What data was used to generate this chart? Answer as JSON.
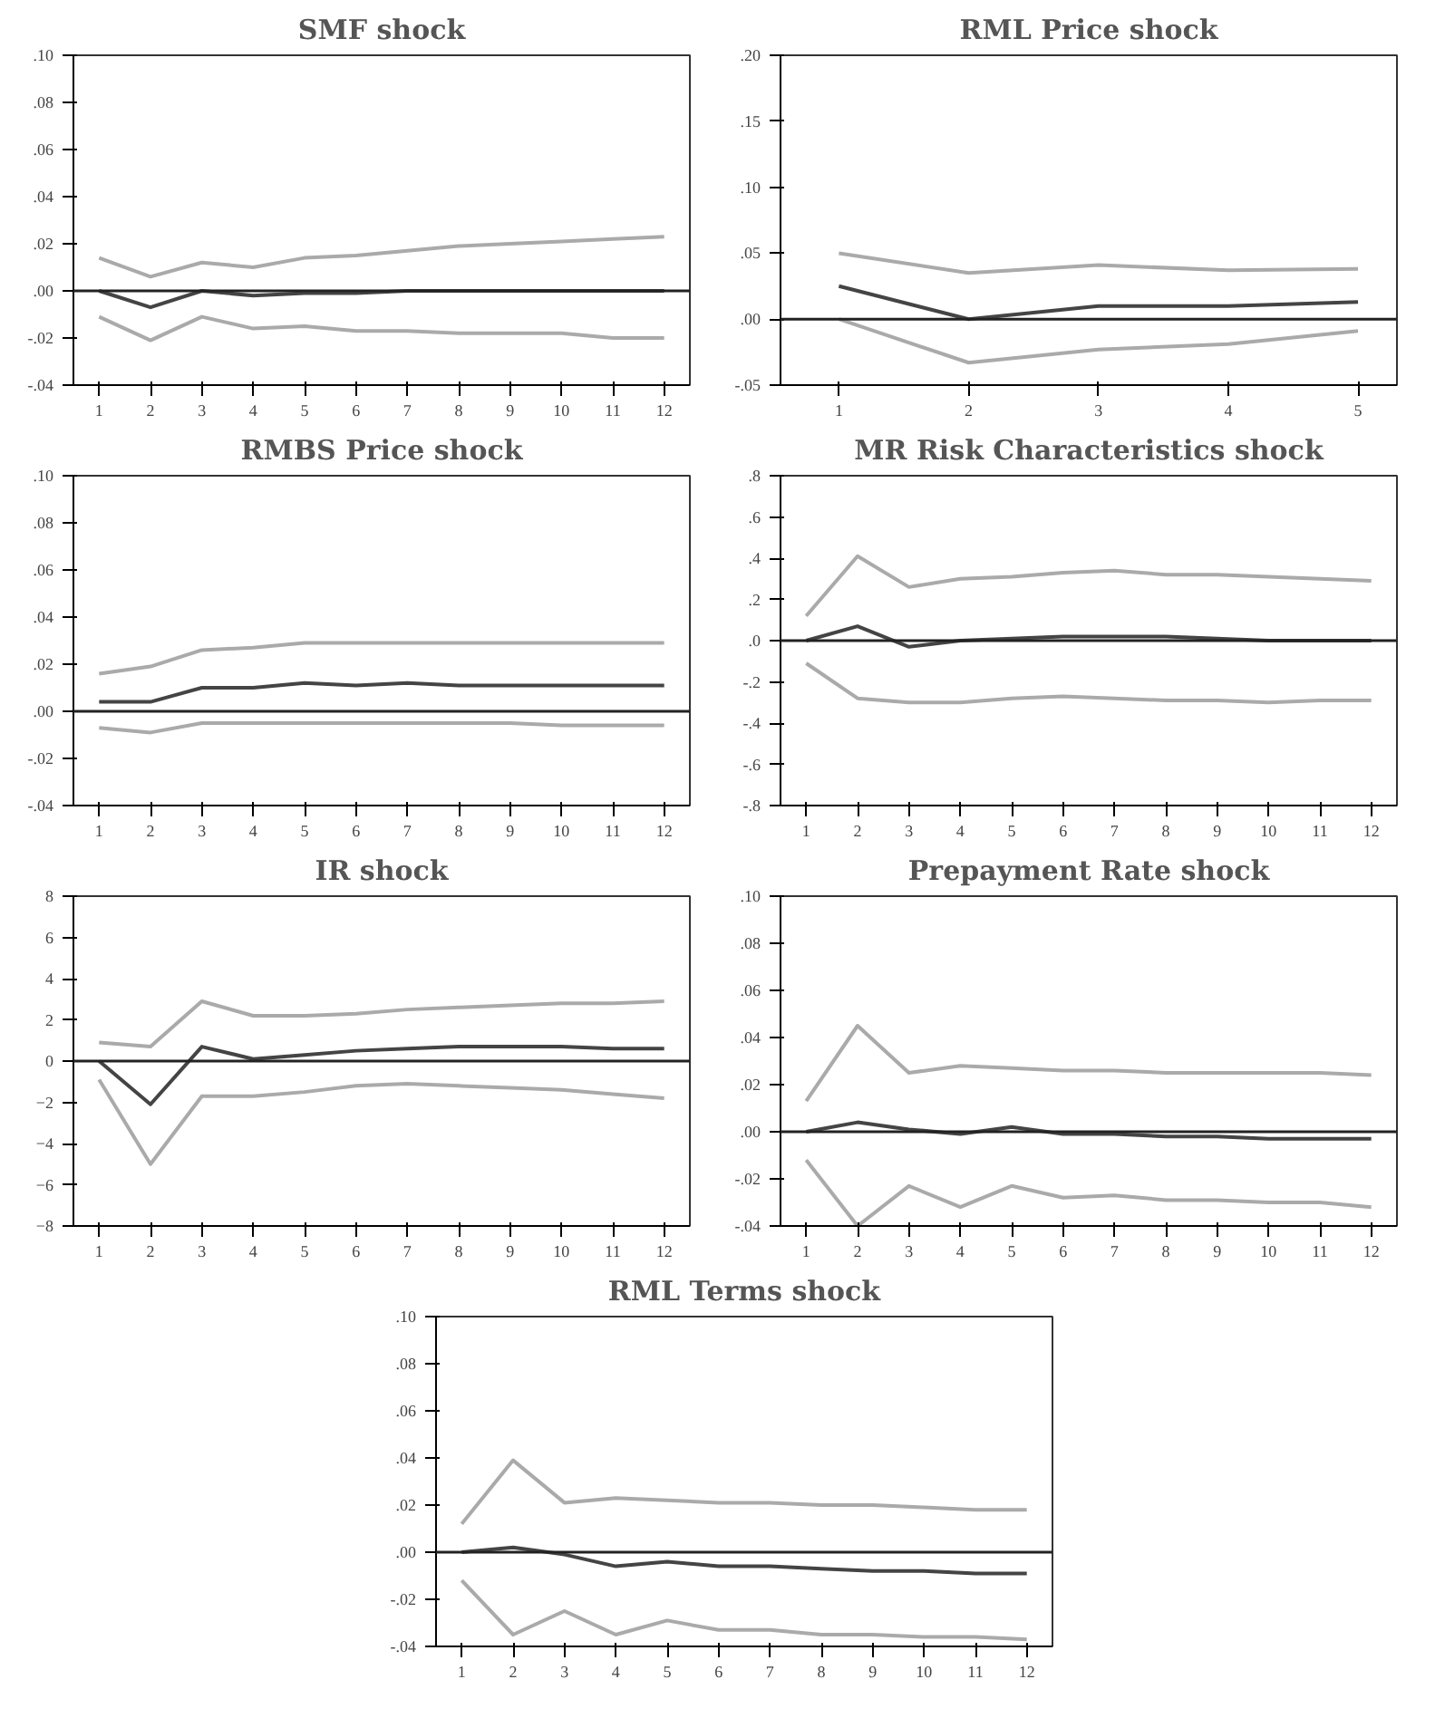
{
  "chart_data": [
    {
      "type": "line",
      "title": "SMF shock",
      "x": [
        1,
        2,
        3,
        4,
        5,
        6,
        7,
        8,
        9,
        10,
        11,
        12
      ],
      "xlim": [
        0.5,
        12.5
      ],
      "xticks": [
        1,
        2,
        3,
        4,
        5,
        6,
        7,
        8,
        9,
        10,
        11,
        12
      ],
      "ylim": [
        -0.04,
        0.1
      ],
      "yticks": [
        {
          "value": -0.04,
          "label": "-.04"
        },
        {
          "value": -0.02,
          "label": "-.02"
        },
        {
          "value": 0,
          "label": ".00"
        },
        {
          "value": 0.02,
          "label": ".02"
        },
        {
          "value": 0.04,
          "label": ".04"
        },
        {
          "value": 0.06,
          "label": ".06"
        },
        {
          "value": 0.08,
          "label": ".08"
        },
        {
          "value": 0.1,
          "label": ".10"
        }
      ],
      "ref_lines": [
        {
          "axis": "y",
          "value": 0,
          "color": "#222222"
        }
      ],
      "series": [
        {
          "color": "#aaaaaa",
          "values": [
            0.014,
            0.006,
            0.012,
            0.01,
            0.014,
            0.015,
            0.017,
            0.019,
            0.02,
            0.021,
            0.022,
            0.023
          ]
        },
        {
          "color": "#444444",
          "values": [
            0.0,
            -0.007,
            0.0,
            -0.002,
            -0.001,
            -0.001,
            0.0,
            0.0,
            0.0,
            0.0,
            0.0,
            0.0
          ]
        },
        {
          "color": "#aaaaaa",
          "values": [
            -0.011,
            -0.021,
            -0.011,
            -0.016,
            -0.015,
            -0.017,
            -0.017,
            -0.018,
            -0.018,
            -0.018,
            -0.02,
            -0.02
          ]
        }
      ]
    },
    {
      "type": "line",
      "title": "RML Price shock",
      "x": [
        1,
        2,
        3,
        4,
        5
      ],
      "xlim": [
        0.55,
        5.3
      ],
      "xticks": [
        1,
        2,
        3,
        4,
        5
      ],
      "ylim": [
        -0.05,
        0.2
      ],
      "yticks": [
        {
          "value": -0.05,
          "label": "-.05"
        },
        {
          "value": 0,
          "label": ".00"
        },
        {
          "value": 0.05,
          "label": ".05"
        },
        {
          "value": 0.1,
          "label": ".10"
        },
        {
          "value": 0.15,
          "label": ".15"
        },
        {
          "value": 0.2,
          "label": ".20"
        }
      ],
      "ref_lines": [
        {
          "axis": "y",
          "value": 0,
          "color": "#222222"
        }
      ],
      "series": [
        {
          "color": "#aaaaaa",
          "values": [
            0.05,
            0.035,
            0.041,
            0.037,
            0.038
          ]
        },
        {
          "color": "#444444",
          "values": [
            0.025,
            0.0,
            0.01,
            0.01,
            0.013
          ]
        },
        {
          "color": "#aaaaaa",
          "values": [
            0.0,
            -0.033,
            -0.023,
            -0.019,
            -0.009
          ]
        }
      ]
    },
    {
      "type": "line",
      "title": "RMBS Price shock",
      "x": [
        1,
        2,
        3,
        4,
        5,
        6,
        7,
        8,
        9,
        10,
        11,
        12
      ],
      "xlim": [
        0.5,
        12.5
      ],
      "xticks": [
        1,
        2,
        3,
        4,
        5,
        6,
        7,
        8,
        9,
        10,
        11,
        12
      ],
      "ylim": [
        -0.04,
        0.1
      ],
      "yticks": [
        {
          "value": -0.04,
          "label": "-.04"
        },
        {
          "value": -0.02,
          "label": "-.02"
        },
        {
          "value": 0,
          "label": ".00"
        },
        {
          "value": 0.02,
          "label": ".02"
        },
        {
          "value": 0.04,
          "label": ".04"
        },
        {
          "value": 0.06,
          "label": ".06"
        },
        {
          "value": 0.08,
          "label": ".08"
        },
        {
          "value": 0.1,
          "label": ".10"
        }
      ],
      "ref_lines": [
        {
          "axis": "y",
          "value": 0,
          "color": "#222222"
        }
      ],
      "series": [
        {
          "color": "#aaaaaa",
          "values": [
            0.016,
            0.019,
            0.026,
            0.027,
            0.029,
            0.029,
            0.029,
            0.029,
            0.029,
            0.029,
            0.029,
            0.029
          ]
        },
        {
          "color": "#444444",
          "values": [
            0.004,
            0.004,
            0.01,
            0.01,
            0.012,
            0.011,
            0.012,
            0.011,
            0.011,
            0.011,
            0.011,
            0.011
          ]
        },
        {
          "color": "#aaaaaa",
          "values": [
            -0.007,
            -0.009,
            -0.005,
            -0.005,
            -0.005,
            -0.005,
            -0.005,
            -0.005,
            -0.005,
            -0.006,
            -0.006,
            -0.006
          ]
        }
      ]
    },
    {
      "type": "line",
      "title": "MR Risk Characteristics shock",
      "x": [
        1,
        2,
        3,
        4,
        5,
        6,
        7,
        8,
        9,
        10,
        11,
        12
      ],
      "xlim": [
        0.5,
        12.5
      ],
      "xticks": [
        1,
        2,
        3,
        4,
        5,
        6,
        7,
        8,
        9,
        10,
        11,
        12
      ],
      "ylim": [
        -0.8,
        0.8
      ],
      "yticks": [
        {
          "value": -0.8,
          "label": "-.8"
        },
        {
          "value": -0.6,
          "label": "-.6"
        },
        {
          "value": -0.4,
          "label": "-.4"
        },
        {
          "value": -0.2,
          "label": "-.2"
        },
        {
          "value": 0,
          "label": ".0"
        },
        {
          "value": 0.2,
          "label": ".2"
        },
        {
          "value": 0.4,
          "label": ".4"
        },
        {
          "value": 0.6,
          "label": ".6"
        },
        {
          "value": 0.8,
          "label": ".8"
        }
      ],
      "ref_lines": [
        {
          "axis": "y",
          "value": 0,
          "color": "#222222"
        }
      ],
      "series": [
        {
          "color": "#aaaaaa",
          "values": [
            0.12,
            0.41,
            0.26,
            0.3,
            0.31,
            0.33,
            0.34,
            0.32,
            0.32,
            0.31,
            0.3,
            0.29
          ]
        },
        {
          "color": "#444444",
          "values": [
            0.0,
            0.07,
            -0.03,
            0.0,
            0.01,
            0.02,
            0.02,
            0.02,
            0.01,
            0.0,
            0.0,
            0.0
          ]
        },
        {
          "color": "#aaaaaa",
          "values": [
            -0.11,
            -0.28,
            -0.3,
            -0.3,
            -0.28,
            -0.27,
            -0.28,
            -0.29,
            -0.29,
            -0.3,
            -0.29,
            -0.29
          ]
        }
      ]
    },
    {
      "type": "line",
      "title": "IR shock",
      "x": [
        1,
        2,
        3,
        4,
        5,
        6,
        7,
        8,
        9,
        10,
        11,
        12
      ],
      "xlim": [
        0.5,
        12.5
      ],
      "xticks": [
        1,
        2,
        3,
        4,
        5,
        6,
        7,
        8,
        9,
        10,
        11,
        12
      ],
      "ylim": [
        -8,
        8
      ],
      "yticks": [
        -8,
        -6,
        -4,
        -2,
        0,
        2,
        4,
        6,
        8
      ],
      "ref_lines": [
        {
          "axis": "y",
          "value": 0,
          "color": "#222222"
        }
      ],
      "series": [
        {
          "color": "#aaaaaa",
          "values": [
            0.9,
            0.7,
            2.9,
            2.2,
            2.2,
            2.3,
            2.5,
            2.6,
            2.7,
            2.8,
            2.8,
            2.9
          ]
        },
        {
          "color": "#444444",
          "values": [
            0.0,
            -2.1,
            0.7,
            0.1,
            0.3,
            0.5,
            0.6,
            0.7,
            0.7,
            0.7,
            0.6,
            0.6
          ]
        },
        {
          "color": "#aaaaaa",
          "values": [
            -0.9,
            -5.0,
            -1.7,
            -1.7,
            -1.5,
            -1.2,
            -1.1,
            -1.2,
            -1.3,
            -1.4,
            -1.6,
            -1.8
          ]
        }
      ]
    },
    {
      "type": "line",
      "title": "Prepayment Rate shock",
      "x": [
        1,
        2,
        3,
        4,
        5,
        6,
        7,
        8,
        9,
        10,
        11,
        12
      ],
      "xlim": [
        0.5,
        12.5
      ],
      "xticks": [
        1,
        2,
        3,
        4,
        5,
        6,
        7,
        8,
        9,
        10,
        11,
        12
      ],
      "ylim": [
        -0.04,
        0.1
      ],
      "yticks": [
        {
          "value": -0.04,
          "label": "-.04"
        },
        {
          "value": -0.02,
          "label": "-.02"
        },
        {
          "value": 0,
          "label": ".00"
        },
        {
          "value": 0.02,
          "label": ".02"
        },
        {
          "value": 0.04,
          "label": ".04"
        },
        {
          "value": 0.06,
          "label": ".06"
        },
        {
          "value": 0.08,
          "label": ".08"
        },
        {
          "value": 0.1,
          "label": ".10"
        }
      ],
      "ref_lines": [
        {
          "axis": "y",
          "value": 0,
          "color": "#222222"
        }
      ],
      "series": [
        {
          "color": "#aaaaaa",
          "values": [
            0.013,
            0.045,
            0.025,
            0.028,
            0.027,
            0.026,
            0.026,
            0.025,
            0.025,
            0.025,
            0.025,
            0.024
          ]
        },
        {
          "color": "#444444",
          "values": [
            0.0,
            0.004,
            0.001,
            -0.001,
            0.002,
            -0.001,
            -0.001,
            -0.002,
            -0.002,
            -0.003,
            -0.003,
            -0.003
          ]
        },
        {
          "color": "#aaaaaa",
          "values": [
            -0.012,
            -0.04,
            -0.023,
            -0.032,
            -0.023,
            -0.028,
            -0.027,
            -0.029,
            -0.029,
            -0.03,
            -0.03,
            -0.032
          ]
        }
      ]
    },
    {
      "type": "line",
      "title": "RML Terms shock",
      "x": [
        1,
        2,
        3,
        4,
        5,
        6,
        7,
        8,
        9,
        10,
        11,
        12
      ],
      "xlim": [
        0.5,
        12.5
      ],
      "xticks": [
        1,
        2,
        3,
        4,
        5,
        6,
        7,
        8,
        9,
        10,
        11,
        12
      ],
      "ylim": [
        -0.04,
        0.1
      ],
      "yticks": [
        {
          "value": -0.04,
          "label": "-.04"
        },
        {
          "value": -0.02,
          "label": "-.02"
        },
        {
          "value": 0,
          "label": ".00"
        },
        {
          "value": 0.02,
          "label": ".02"
        },
        {
          "value": 0.04,
          "label": ".04"
        },
        {
          "value": 0.06,
          "label": ".06"
        },
        {
          "value": 0.08,
          "label": ".08"
        },
        {
          "value": 0.1,
          "label": ".10"
        }
      ],
      "ref_lines": [
        {
          "axis": "y",
          "value": 0,
          "color": "#222222"
        }
      ],
      "series": [
        {
          "color": "#aaaaaa",
          "values": [
            0.012,
            0.039,
            0.021,
            0.023,
            0.022,
            0.021,
            0.021,
            0.02,
            0.02,
            0.019,
            0.018,
            0.018
          ]
        },
        {
          "color": "#444444",
          "values": [
            0.0,
            0.002,
            -0.001,
            -0.006,
            -0.004,
            -0.006,
            -0.006,
            -0.007,
            -0.008,
            -0.008,
            -0.009,
            -0.009
          ]
        },
        {
          "color": "#aaaaaa",
          "values": [
            -0.012,
            -0.035,
            -0.025,
            -0.035,
            -0.029,
            -0.033,
            -0.033,
            -0.035,
            -0.035,
            -0.036,
            -0.036,
            -0.037
          ]
        }
      ]
    }
  ]
}
